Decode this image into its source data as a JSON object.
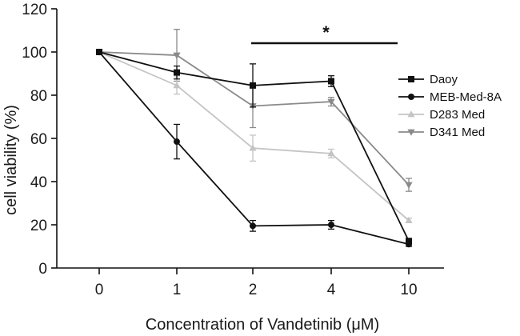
{
  "chart_data": {
    "type": "line",
    "xlabel": "Concentration of Vandetinib (μM)",
    "ylabel": "cell viability (%)",
    "categories": [
      "0",
      "1",
      "2",
      "4",
      "10"
    ],
    "ylim": [
      0,
      120
    ],
    "yticks": [
      0,
      20,
      40,
      60,
      80,
      100,
      120
    ],
    "grid": false,
    "legend_position": "right",
    "series": [
      {
        "name": "Daoy",
        "marker": "square",
        "color": "#111111",
        "values": [
          100,
          90.5,
          84.5,
          86.5,
          12.5
        ],
        "errors": [
          0,
          3,
          10,
          2.5,
          1
        ]
      },
      {
        "name": "MEB-Med-8A",
        "marker": "circle",
        "color": "#111111",
        "values": [
          100,
          58.5,
          19.5,
          20,
          11
        ],
        "errors": [
          0,
          8,
          2.5,
          2,
          1
        ]
      },
      {
        "name": "D283 Med",
        "marker": "triangle-up",
        "color": "#c4c4c4",
        "values": [
          100,
          84.5,
          55.5,
          53,
          22
        ],
        "errors": [
          0,
          4,
          6,
          2,
          1
        ]
      },
      {
        "name": "D341 Med",
        "marker": "triangle-down",
        "color": "#8a8a8a",
        "values": [
          100,
          98.5,
          75,
          77,
          38.5
        ],
        "errors": [
          0,
          12,
          10,
          2,
          3
        ]
      }
    ],
    "annotations": [
      {
        "text": "*",
        "from_category": "2",
        "to_category": "10",
        "y": 130
      }
    ]
  }
}
